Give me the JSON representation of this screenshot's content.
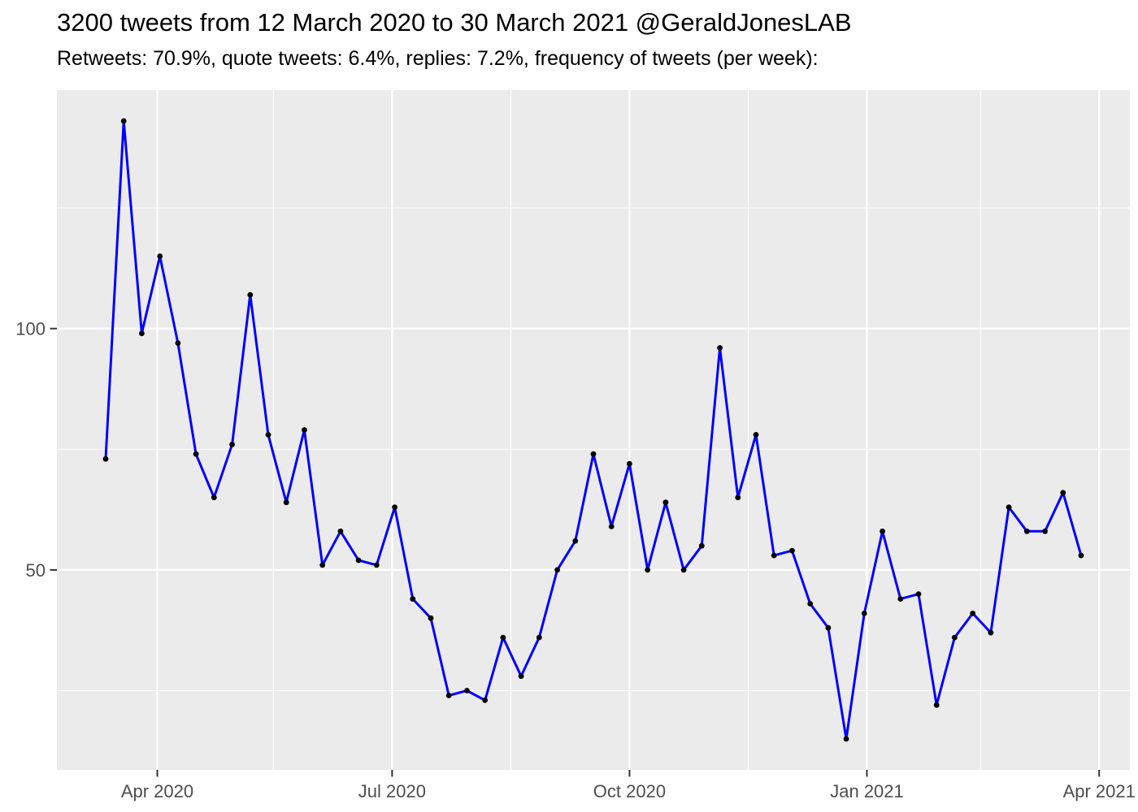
{
  "header": {
    "title": "3200 tweets from 12 March 2020 to 30 March 2021 @GeraldJonesLAB",
    "subtitle": "Retweets: 70.9%, quote tweets: 6.4%, replies: 7.2%, frequency of tweets (per week):"
  },
  "chart_data": {
    "type": "line",
    "title": "3200 tweets from 12 March 2020 to 30 March 2021 @GeraldJonesLAB",
    "subtitle": "Retweets: 70.9%, quote tweets: 6.4%, replies: 7.2%, frequency of tweets (per week):",
    "xlabel": "",
    "ylabel": "",
    "grid": "on",
    "legend": "none",
    "series_name": "tweets per week",
    "x": [
      "2020-03-12",
      "2020-03-19",
      "2020-03-26",
      "2020-04-02",
      "2020-04-09",
      "2020-04-16",
      "2020-04-23",
      "2020-04-30",
      "2020-05-07",
      "2020-05-14",
      "2020-05-21",
      "2020-05-28",
      "2020-06-04",
      "2020-06-11",
      "2020-06-18",
      "2020-06-25",
      "2020-07-02",
      "2020-07-09",
      "2020-07-16",
      "2020-07-23",
      "2020-07-30",
      "2020-08-06",
      "2020-08-13",
      "2020-08-20",
      "2020-08-27",
      "2020-09-03",
      "2020-09-10",
      "2020-09-17",
      "2020-09-24",
      "2020-10-01",
      "2020-10-08",
      "2020-10-15",
      "2020-10-22",
      "2020-10-29",
      "2020-11-05",
      "2020-11-12",
      "2020-11-19",
      "2020-11-26",
      "2020-12-03",
      "2020-12-10",
      "2020-12-17",
      "2020-12-24",
      "2020-12-31",
      "2021-01-07",
      "2021-01-14",
      "2021-01-21",
      "2021-01-28",
      "2021-02-04",
      "2021-02-11",
      "2021-02-18",
      "2021-02-25",
      "2021-03-04",
      "2021-03-11",
      "2021-03-18",
      "2021-03-25"
    ],
    "values": [
      73,
      143,
      99,
      115,
      97,
      74,
      65,
      76,
      107,
      78,
      64,
      79,
      51,
      58,
      52,
      51,
      63,
      44,
      40,
      24,
      25,
      23,
      36,
      28,
      36,
      50,
      56,
      74,
      59,
      72,
      50,
      64,
      50,
      55,
      96,
      65,
      78,
      53,
      54,
      43,
      38,
      15,
      41,
      58,
      44,
      45,
      22,
      36,
      41,
      37,
      63,
      58,
      58,
      66,
      53
    ],
    "x_ticks": [
      {
        "label": "Apr 2020",
        "date": "2020-04-01"
      },
      {
        "label": "Jul 2020",
        "date": "2020-07-01"
      },
      {
        "label": "Oct 2020",
        "date": "2020-10-01"
      },
      {
        "label": "Jan 2021",
        "date": "2021-01-01"
      },
      {
        "label": "Apr 2021",
        "date": "2021-04-01"
      }
    ],
    "x_minor_ticks": [
      "2020-05-16",
      "2020-08-16",
      "2020-11-16",
      "2021-02-14"
    ],
    "y_ticks": [
      {
        "label": "50",
        "value": 50
      },
      {
        "label": "100",
        "value": 100
      }
    ],
    "y_minor_ticks": [
      25,
      75,
      125
    ],
    "colors": {
      "line": "#0000FF",
      "point": "#000000",
      "panel_background": "#EBEBEB",
      "grid": "#FFFFFF",
      "axis_text": "#4D4D4D",
      "tick_mark": "#333333",
      "title_text": "#000000"
    }
  }
}
